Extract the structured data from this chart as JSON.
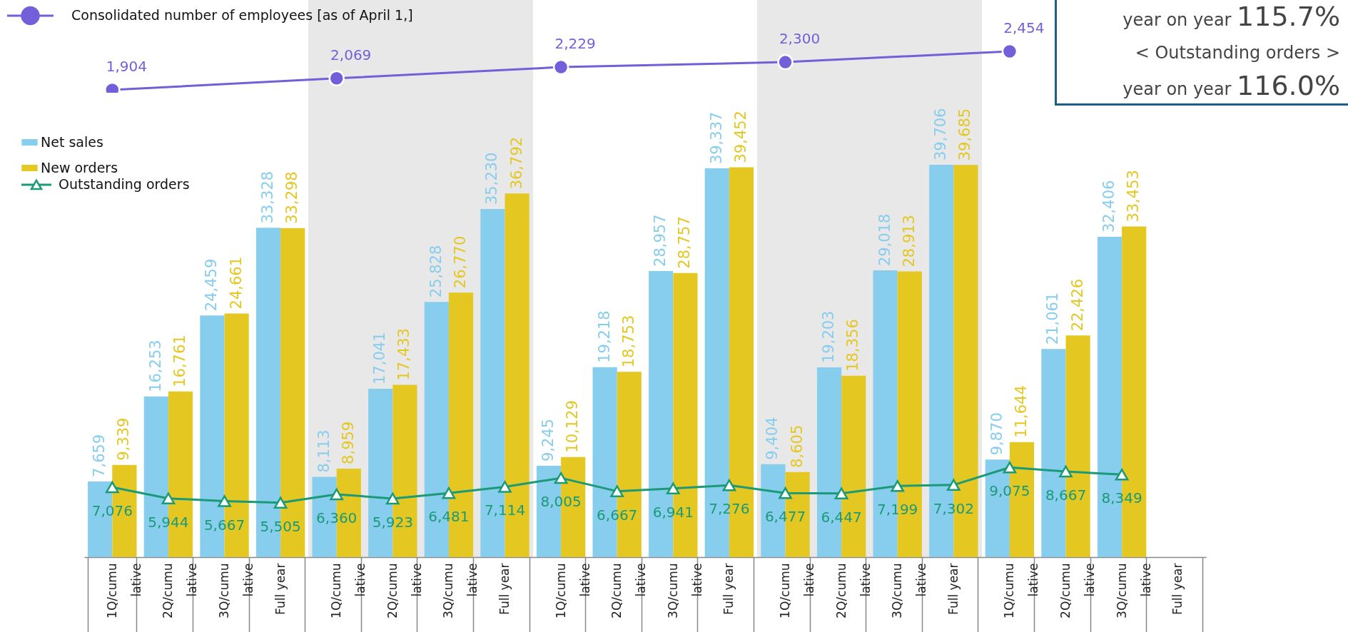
{
  "chart_data": [
    {
      "type": "line",
      "categories": [
        null,
        null,
        null,
        null,
        null,
        null,
        null,
        null,
        null,
        null,
        null,
        null,
        null,
        null,
        null,
        null,
        null,
        null,
        null,
        null
      ],
      "series": [
        {
          "name": "Consolidated number of employees  [as of April 1,]",
          "marker": "circle",
          "color": "#735fd9",
          "values": [
            1904,
            null,
            null,
            null,
            2069,
            null,
            null,
            null,
            2229,
            null,
            null,
            null,
            2300,
            null,
            null,
            null,
            2454,
            null,
            null,
            null
          ],
          "value_labels": [
            "1,904",
            null,
            null,
            null,
            "2,069",
            null,
            null,
            null,
            "2,229",
            null,
            null,
            null,
            "2,300",
            null,
            null,
            null,
            "2,454",
            null,
            null,
            null
          ]
        }
      ],
      "tick_labels": false,
      "legend": "top left"
    },
    {
      "type": "bar",
      "categories": [
        "1Q/cumulative",
        "2Q/cumulative",
        "3Q/cumulative",
        "Full year",
        "1Q/cumulative",
        "2Q/cumulative",
        "3Q/cumulative",
        "Full year",
        "1Q/cumulative",
        "2Q/cumulative",
        "3Q/cumulative",
        "Full year",
        "1Q/cumulative",
        "2Q/cumulative",
        "3Q/cumulative",
        "Full year",
        "1Q/cumulative",
        "2Q/cumulative",
        "3Q/cumulative",
        "Full year"
      ],
      "series": [
        {
          "name": "Net sales",
          "color": "#87cdee",
          "values": [
            7659,
            16253,
            24459,
            33328,
            8113,
            17041,
            25828,
            35230,
            9245,
            19218,
            28957,
            39337,
            9404,
            19203,
            29018,
            39706,
            9870,
            21061,
            32406,
            null
          ],
          "value_labels": [
            "7,659",
            "16,253",
            "24,459",
            "33,328",
            "8,113",
            "17,041",
            "25,828",
            "35,230",
            "9,245",
            "19,218",
            "28,957",
            "39,337",
            "9,404",
            "19,203",
            "29,018",
            "39,706",
            "9,870",
            "21,061",
            "32,406",
            null
          ]
        },
        {
          "name": "New orders",
          "color": "#e5c722",
          "values": [
            9339,
            16761,
            24661,
            33298,
            8959,
            17433,
            26770,
            36792,
            10129,
            18753,
            28757,
            39452,
            8605,
            18356,
            28913,
            39685,
            11644,
            22426,
            33453,
            null
          ],
          "value_labels": [
            "9,339",
            "16,761",
            "24,661",
            "33,298",
            "8,959",
            "17,433",
            "26,770",
            "36,792",
            "10,129",
            "18,753",
            "28,757",
            "39,452",
            "8,605",
            "18,356",
            "28,913",
            "39,685",
            "11,644",
            "22,426",
            "33,453",
            null
          ]
        },
        {
          "name": "Outstanding orders",
          "type": "line",
          "marker": "triangle",
          "color": "#1b9a78",
          "values": [
            7076,
            5944,
            5667,
            5505,
            6360,
            5923,
            6481,
            7114,
            8005,
            6667,
            6941,
            7276,
            6477,
            6447,
            7199,
            7302,
            9075,
            8667,
            8349,
            null
          ],
          "value_labels": [
            "7,076",
            "5,944",
            "5,667",
            "5,505",
            "6,360",
            "5,923",
            "6,481",
            "7,114",
            "8,005",
            "6,667",
            "6,941",
            "7,276",
            "6,477",
            "6,447",
            "7,199",
            "7,302",
            "9,075",
            "8,667",
            "8,349",
            null
          ]
        }
      ],
      "tick_labels": "x",
      "legend": "top left",
      "annotations": [
        "year on year 115.7%",
        "< Outstanding orders >",
        "year on year 116.0%"
      ]
    }
  ]
}
